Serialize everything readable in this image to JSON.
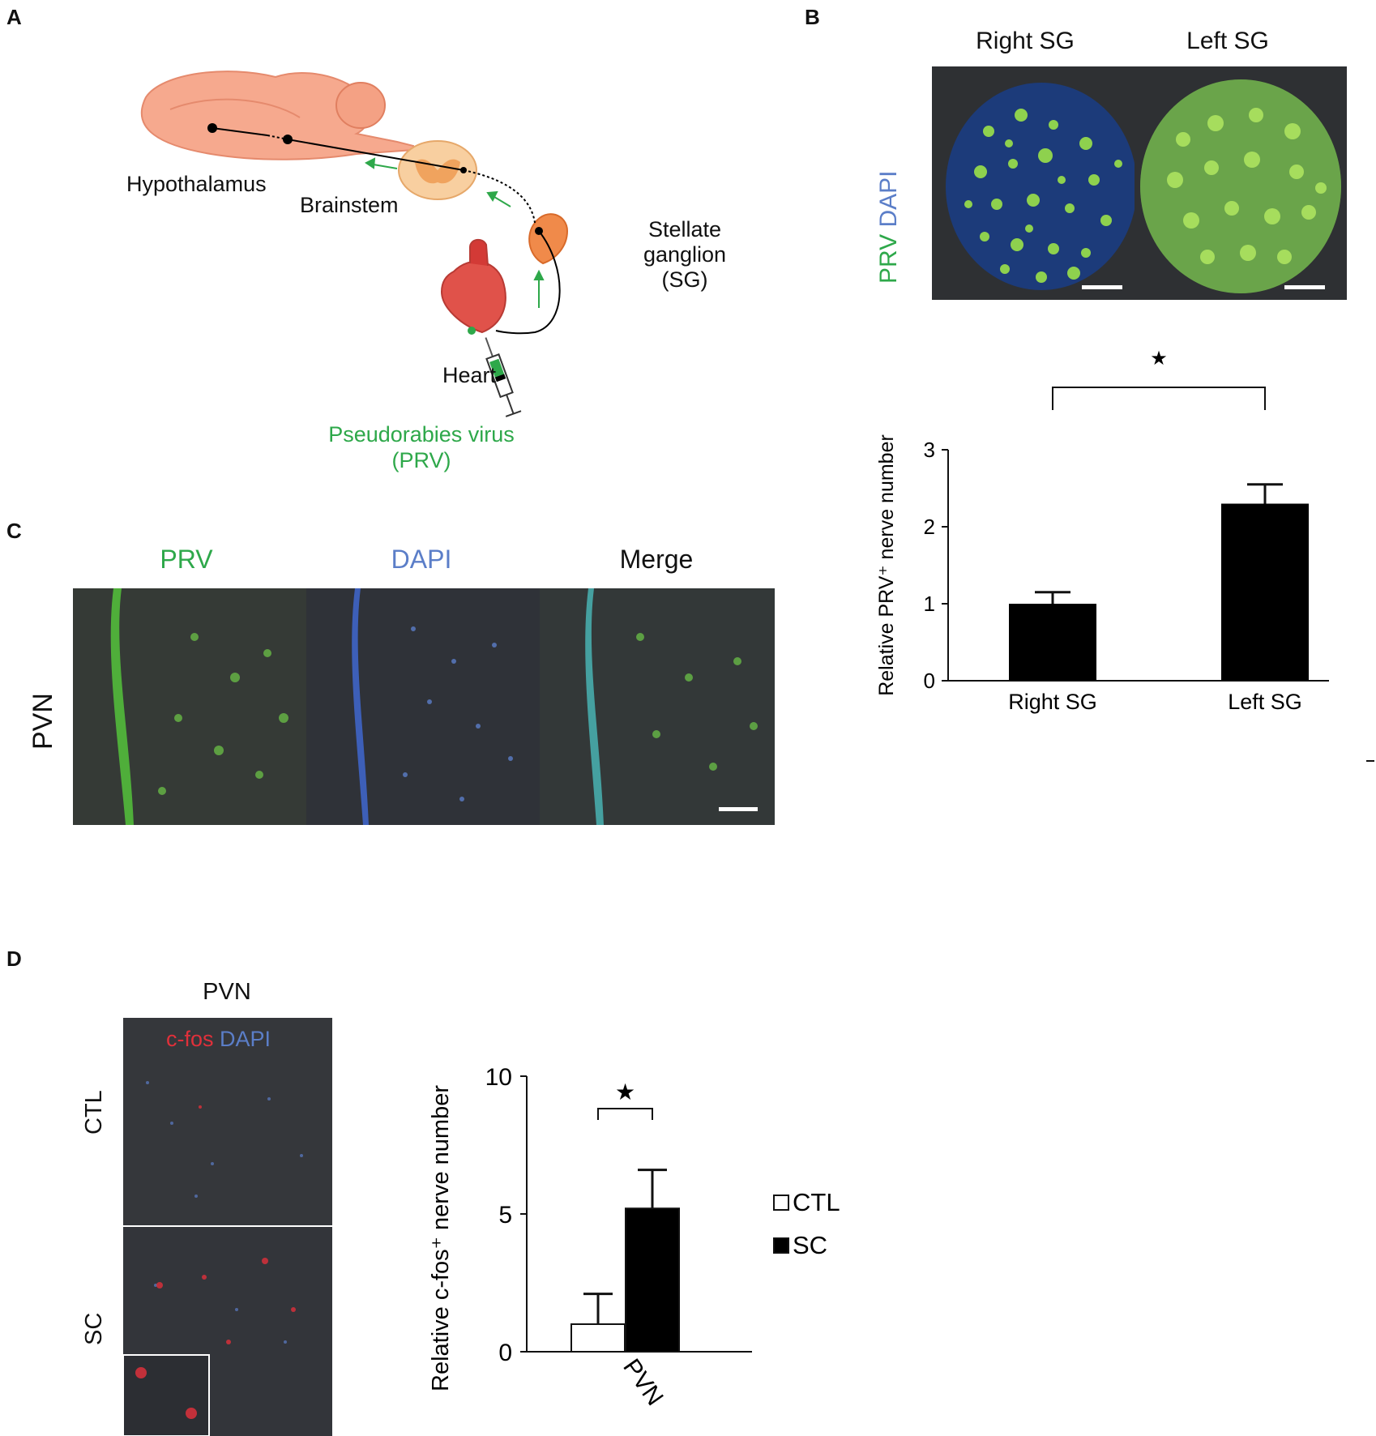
{
  "panels": {
    "a": {
      "letter": "A",
      "labels": {
        "hypothalamus": "Hypothalamus",
        "brainstem": "Brainstem",
        "sg_line1": "Stellate",
        "sg_line2": "ganglion",
        "sg_line3": "(SG)",
        "heart": "Heart",
        "prv_line1": "Pseudorabies virus",
        "prv_line2": "(PRV)"
      }
    },
    "b": {
      "letter": "B",
      "image_titles": {
        "right": "Right SG",
        "left": "Left SG"
      },
      "stain_label_prv": "PRV",
      "stain_label_dapi": "DAPI",
      "significance": "★"
    },
    "c": {
      "letter": "C",
      "channel_titles": {
        "prv": "PRV",
        "dapi": "DAPI",
        "merge": "Merge"
      },
      "row_label": "PVN"
    },
    "d": {
      "letter": "D",
      "column_title": "PVN",
      "stain_label_cfos": "c-fos",
      "stain_label_dapi": "DAPI",
      "row_labels": {
        "ctl": "CTL",
        "sc": "SC"
      },
      "significance": "★"
    }
  },
  "colors": {
    "prv_green": "#2ea84a",
    "dapi_blue": "#5b7ec8",
    "cfos_red": "#e0303a",
    "bar_black": "#000000",
    "micro_bg": "#2e3033"
  },
  "chart_data": [
    {
      "type": "bar",
      "panel": "B",
      "categories": [
        "Right SG",
        "Left SG"
      ],
      "values": [
        1.0,
        2.3
      ],
      "errors": [
        0.15,
        0.25
      ],
      "ylabel": "Relative PRV⁺ nerve number",
      "ylim": [
        0,
        3
      ],
      "yticks": [
        0,
        1,
        2,
        3
      ]
    },
    {
      "type": "bar",
      "panel": "D",
      "categories": [
        "PVN"
      ],
      "series": [
        {
          "name": "CTL",
          "values": [
            1.0
          ],
          "errors": [
            1.1
          ],
          "fill": "#ffffff"
        },
        {
          "name": "SC",
          "values": [
            5.2
          ],
          "errors": [
            1.4
          ],
          "fill": "#000000"
        }
      ],
      "ylabel": "Relative c-fos⁺ nerve number",
      "ylim": [
        0,
        10
      ],
      "yticks": [
        0,
        5,
        10
      ]
    }
  ]
}
